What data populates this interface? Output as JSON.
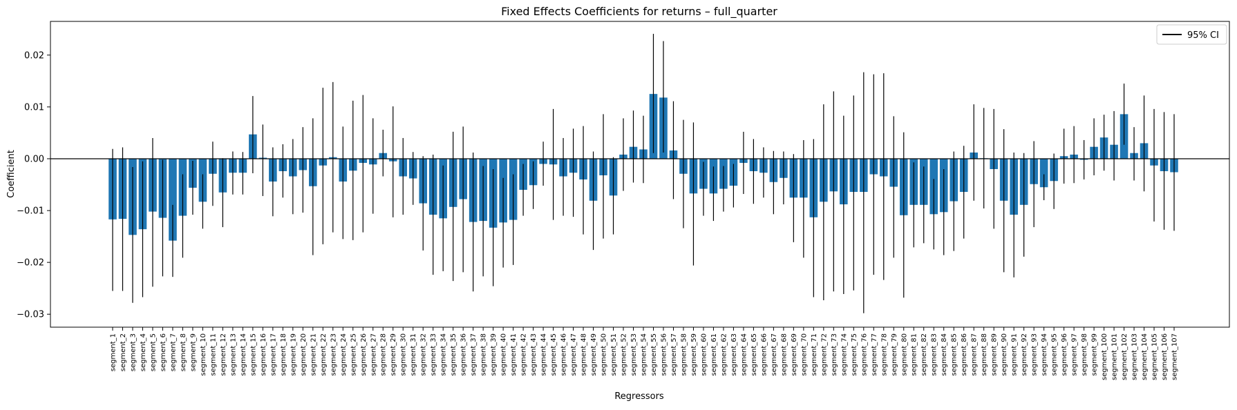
{
  "chart_data": {
    "type": "bar",
    "title": "Fixed Effects Coefficients for returns – full_quarter",
    "xlabel": "Regressors",
    "ylabel": "Coefficient",
    "ylim": [
      -0.0325,
      0.0265
    ],
    "yticks": [
      -0.03,
      -0.02,
      -0.01,
      0.0,
      0.01,
      0.02
    ],
    "ytick_labels": [
      "−0.03",
      "−0.02",
      "−0.01",
      "0.00",
      "0.01",
      "0.02"
    ],
    "legend": {
      "label": "95% CI",
      "placement": "top-right"
    },
    "bar_color": "#1f77b4",
    "error_color": "#000000",
    "categories": [
      "segment_1",
      "segment_2",
      "segment_3",
      "segment_4",
      "segment_5",
      "segment_6",
      "segment_7",
      "segment_8",
      "segment_9",
      "segment_10",
      "segment_11",
      "segment_12",
      "segment_13",
      "segment_14",
      "segment_15",
      "segment_16",
      "segment_17",
      "segment_18",
      "segment_19",
      "segment_20",
      "segment_21",
      "segment_22",
      "segment_23",
      "segment_24",
      "segment_25",
      "segment_26",
      "segment_27",
      "segment_28",
      "segment_29",
      "segment_30",
      "segment_31",
      "segment_32",
      "segment_33",
      "segment_34",
      "segment_35",
      "segment_36",
      "segment_37",
      "segment_38",
      "segment_39",
      "segment_40",
      "segment_41",
      "segment_42",
      "segment_43",
      "segment_44",
      "segment_45",
      "segment_46",
      "segment_47",
      "segment_48",
      "segment_49",
      "segment_50",
      "segment_51",
      "segment_52",
      "segment_53",
      "segment_54",
      "segment_55",
      "segment_56",
      "segment_57",
      "segment_58",
      "segment_59",
      "segment_60",
      "segment_61",
      "segment_62",
      "segment_63",
      "segment_64",
      "segment_65",
      "segment_66",
      "segment_67",
      "segment_68",
      "segment_69",
      "segment_70",
      "segment_71",
      "segment_72",
      "segment_73",
      "segment_74",
      "segment_75",
      "segment_76",
      "segment_77",
      "segment_78",
      "segment_79",
      "segment_80",
      "segment_81",
      "segment_82",
      "segment_83",
      "segment_84",
      "segment_85",
      "segment_86",
      "segment_87",
      "segment_88",
      "segment_89",
      "segment_90",
      "segment_91",
      "segment_92",
      "segment_93",
      "segment_94",
      "segment_95",
      "segment_96",
      "segment_97",
      "segment_98",
      "segment_99",
      "segment_100",
      "segment_101",
      "segment_102",
      "segment_103",
      "segment_104",
      "segment_105",
      "segment_106",
      "segment_107"
    ],
    "values": [
      -0.0117,
      -0.0116,
      -0.0147,
      -0.0136,
      -0.0102,
      -0.0114,
      -0.0158,
      -0.011,
      -0.0056,
      -0.0083,
      -0.0029,
      -0.0065,
      -0.0027,
      -0.0027,
      0.0047,
      0.0002,
      -0.0044,
      -0.0024,
      -0.0034,
      -0.0022,
      -0.0053,
      -0.0013,
      0.0003,
      -0.0044,
      -0.0023,
      -0.0008,
      -0.0011,
      0.0011,
      -0.0005,
      -0.0034,
      -0.0038,
      -0.0086,
      -0.0108,
      -0.0115,
      -0.0093,
      -0.0078,
      -0.0122,
      -0.012,
      -0.0133,
      -0.0123,
      -0.0118,
      -0.006,
      -0.0051,
      -0.001,
      -0.0011,
      -0.0034,
      -0.0027,
      -0.004,
      -0.0081,
      -0.0032,
      -0.0071,
      0.0008,
      0.0023,
      0.0018,
      0.0125,
      0.0118,
      0.0016,
      -0.0029,
      -0.0067,
      -0.0058,
      -0.0067,
      -0.0058,
      -0.0052,
      -0.0008,
      -0.0024,
      -0.0027,
      -0.0045,
      -0.0037,
      -0.0075,
      -0.0075,
      -0.0113,
      -0.0083,
      -0.0063,
      -0.0088,
      -0.0064,
      -0.0064,
      -0.003,
      -0.0034,
      -0.0054,
      -0.0109,
      -0.0089,
      -0.0089,
      -0.0107,
      -0.0103,
      -0.0082,
      -0.0064,
      0.0012,
      0.0001,
      -0.002,
      -0.0081,
      -0.0108,
      -0.0089,
      -0.0049,
      -0.0055,
      -0.0043,
      0.0005,
      0.0008,
      -0.0002,
      0.0023,
      0.0041,
      0.0027,
      0.0086,
      0.0011,
      0.003,
      -0.0013,
      -0.0024,
      -0.0026
    ],
    "ci_low": [
      -0.0255,
      -0.0255,
      -0.0278,
      -0.0267,
      -0.0247,
      -0.0227,
      -0.0228,
      -0.0191,
      -0.0108,
      -0.0135,
      -0.0091,
      -0.0132,
      -0.0069,
      -0.0069,
      -0.0028,
      -0.0072,
      -0.0111,
      -0.0075,
      -0.0107,
      -0.0104,
      -0.0186,
      -0.0165,
      -0.0142,
      -0.0155,
      -0.0157,
      -0.0142,
      -0.0106,
      -0.0034,
      -0.0113,
      -0.0108,
      -0.0089,
      -0.0177,
      -0.0224,
      -0.0217,
      -0.0236,
      -0.0219,
      -0.0256,
      -0.0227,
      -0.0246,
      -0.021,
      -0.0205,
      -0.011,
      -0.0097,
      -0.0052,
      -0.0118,
      -0.011,
      -0.0112,
      -0.0146,
      -0.0176,
      -0.0154,
      -0.0146,
      -0.0062,
      -0.0046,
      -0.0047,
      0.0011,
      0.0012,
      -0.0078,
      -0.0134,
      -0.0206,
      -0.011,
      -0.012,
      -0.0102,
      -0.0094,
      -0.0068,
      -0.0087,
      -0.0075,
      -0.0107,
      -0.0088,
      -0.0161,
      -0.0191,
      -0.0267,
      -0.0273,
      -0.0256,
      -0.0261,
      -0.0254,
      -0.0298,
      -0.0224,
      -0.0234,
      -0.0191,
      -0.0268,
      -0.0171,
      -0.0163,
      -0.0175,
      -0.0186,
      -0.0178,
      -0.0154,
      -0.0081,
      -0.0096,
      -0.0135,
      -0.0219,
      -0.0229,
      -0.0189,
      -0.0132,
      -0.008,
      -0.0097,
      -0.0048,
      -0.0047,
      -0.004,
      -0.0032,
      -0.0023,
      -0.0042,
      0.0027,
      -0.0042,
      -0.0063,
      -0.0121,
      -0.0137,
      -0.0139
    ],
    "ci_high": [
      0.0019,
      0.0022,
      -0.0016,
      -0.0005,
      0.004,
      -0.0002,
      -0.0089,
      -0.003,
      -0.0004,
      -0.003,
      0.0033,
      0.0001,
      0.0014,
      0.0013,
      0.0121,
      0.0066,
      0.0022,
      0.0028,
      0.0038,
      0.0061,
      0.0078,
      0.0137,
      0.0148,
      0.0062,
      0.0112,
      0.0123,
      0.0078,
      0.0056,
      0.0101,
      0.004,
      0.0013,
      0.0005,
      0.0008,
      -0.0013,
      0.0052,
      0.0062,
      0.0012,
      -0.0014,
      -0.002,
      -0.0037,
      -0.003,
      -0.001,
      -0.0005,
      0.0033,
      0.0096,
      0.004,
      0.0058,
      0.0063,
      0.0014,
      0.0086,
      0.0003,
      0.0078,
      0.0093,
      0.0083,
      0.0241,
      0.0227,
      0.0111,
      0.0075,
      0.007,
      -0.0006,
      -0.0015,
      -0.0014,
      -0.001,
      0.0052,
      0.0038,
      0.0022,
      0.0015,
      0.0014,
      0.0009,
      0.0036,
      0.0038,
      0.0105,
      0.013,
      0.0083,
      0.0122,
      0.0167,
      0.0163,
      0.0165,
      0.0082,
      0.0051,
      -0.0007,
      -0.0015,
      -0.0039,
      -0.002,
      0.0014,
      0.0025,
      0.0105,
      0.0098,
      0.0096,
      0.0057,
      0.0012,
      0.0011,
      0.0034,
      -0.003,
      0.001,
      0.0058,
      0.0063,
      0.0036,
      0.0078,
      0.0085,
      0.0092,
      0.0145,
      0.0061,
      0.0122,
      0.0096,
      0.009,
      0.0086
    ]
  }
}
